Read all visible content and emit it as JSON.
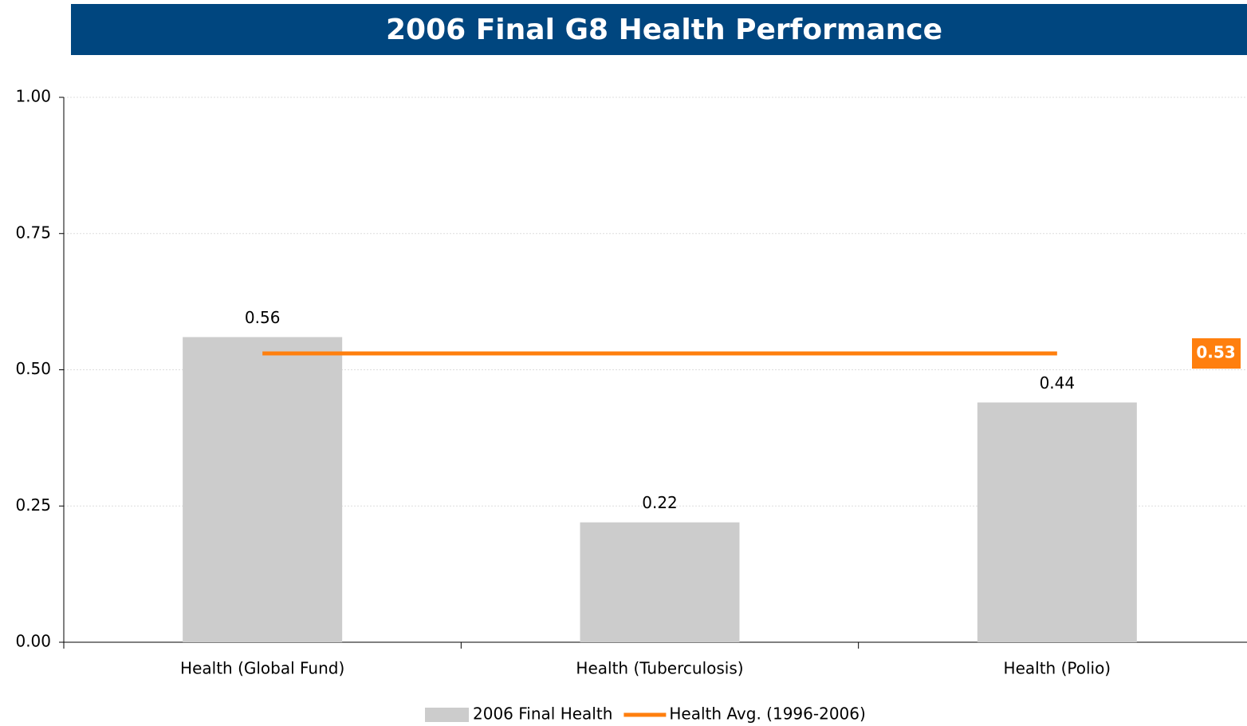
{
  "chart_data": {
    "type": "bar",
    "title": "2006 Final G8 Health Performance",
    "categories": [
      "Health (Global Fund)",
      "Health (Tuberculosis)",
      "Health (Polio)"
    ],
    "series": [
      {
        "name": "2006 Final Health",
        "type": "bar",
        "color": "#cccccc",
        "values": [
          0.56,
          0.22,
          0.44
        ]
      },
      {
        "name": "Health Avg. (1996-2006)",
        "type": "line",
        "color": "#ff7f0e",
        "values": [
          0.53,
          0.53,
          0.53
        ]
      }
    ],
    "ylim": [
      0,
      1
    ],
    "yticks": [
      {
        "value": 0,
        "label": "0.00"
      },
      {
        "value": 0.25,
        "label": "0.25"
      },
      {
        "value": 0.5,
        "label": "0.50"
      },
      {
        "value": 0.75,
        "label": "0.75"
      },
      {
        "value": 1,
        "label": "1.00"
      }
    ],
    "grid": true,
    "legend": "bottom"
  }
}
